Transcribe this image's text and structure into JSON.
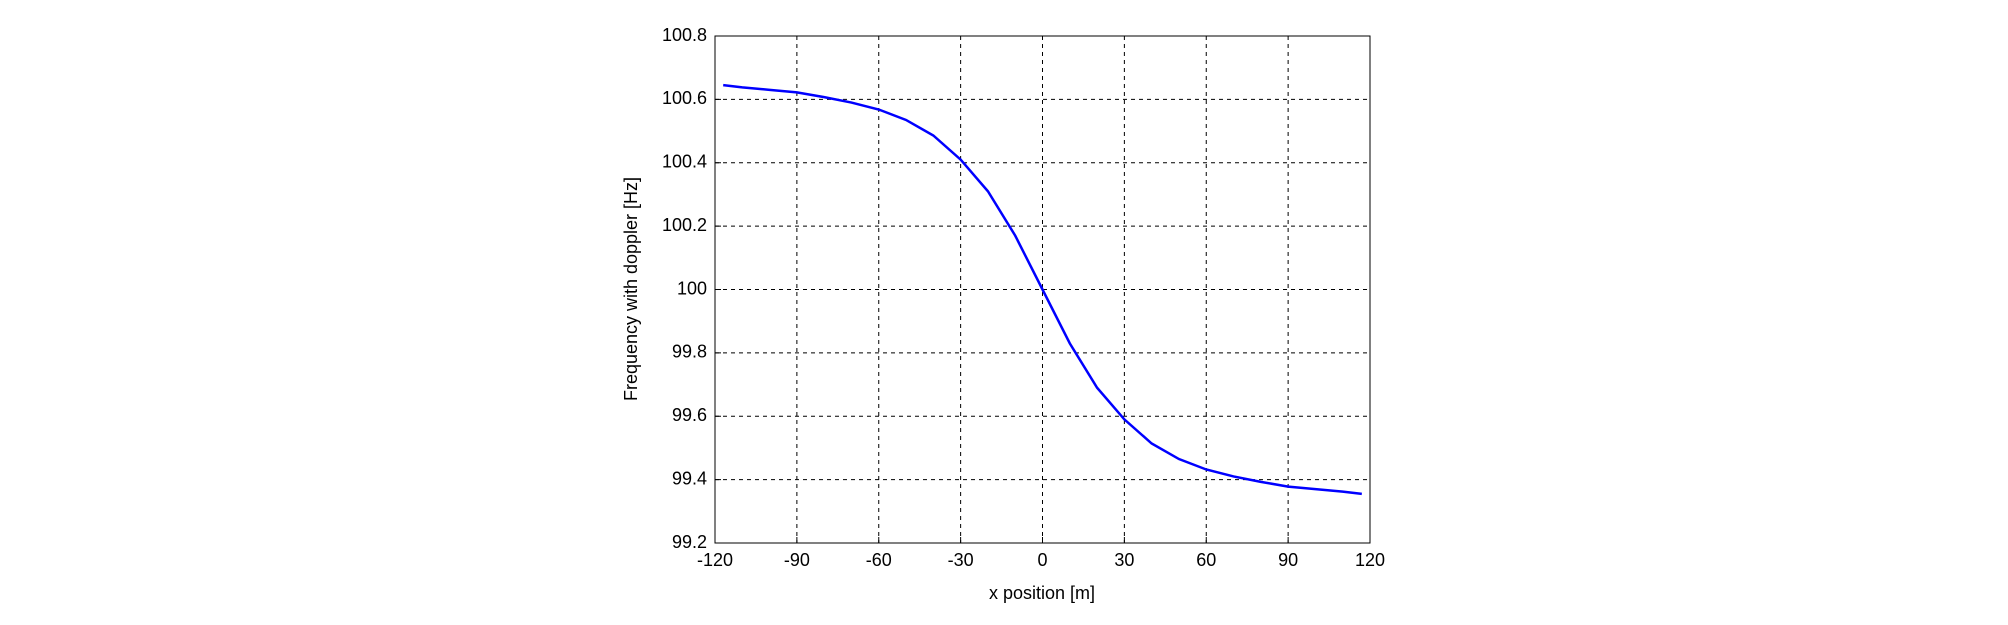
{
  "chart_data": {
    "type": "line",
    "x_label": "x position [m]",
    "y_label": "Frequency with doppler [Hz]",
    "x": [
      -117,
      -110,
      -100,
      -90,
      -80,
      -70,
      -60,
      -50,
      -40,
      -30,
      -20,
      -10,
      0,
      10,
      20,
      30,
      40,
      50,
      60,
      70,
      80,
      90,
      100,
      110,
      117
    ],
    "series": [
      {
        "color": "#0000ff",
        "values": [
          100.645,
          100.638,
          100.63,
          100.622,
          100.607,
          100.59,
          100.568,
          100.535,
          100.486,
          100.41,
          100.31,
          100.17,
          100.0,
          99.83,
          99.69,
          99.59,
          99.514,
          99.465,
          99.432,
          99.41,
          99.393,
          99.378,
          99.37,
          99.362,
          99.355
        ]
      }
    ],
    "xlim": [
      -120,
      120
    ],
    "xticks": [
      -120,
      -90,
      -60,
      -30,
      0,
      30,
      60,
      90,
      120
    ],
    "ylim": [
      99.2,
      100.8
    ],
    "yticks": [
      99.2,
      99.4,
      99.6,
      99.8,
      100,
      100.2,
      100.4,
      100.6,
      100.8
    ],
    "grid": true
  }
}
